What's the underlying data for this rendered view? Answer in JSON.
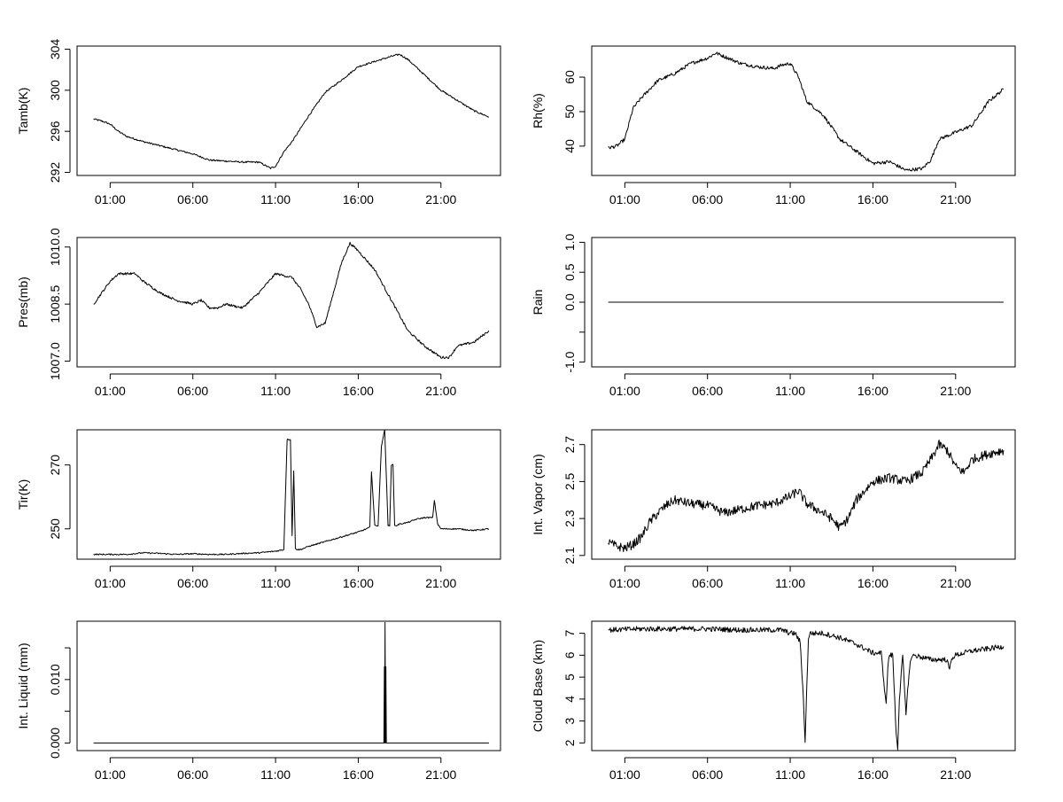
{
  "chart_data": [
    {
      "type": "line",
      "ylabel": "Tamb(K)",
      "xlabel": "",
      "xlim": [
        -1.0,
        24.6
      ],
      "ylim": [
        291.7,
        304.3
      ],
      "xticks": [
        1,
        6,
        11,
        16,
        21
      ],
      "xtick_labels": [
        "01:00",
        "06:00",
        "11:00",
        "16:00",
        "21:00"
      ],
      "yticks": [
        292,
        296,
        300,
        304
      ],
      "ytick_labels": [
        "292",
        "296",
        "300",
        "304"
      ],
      "noise": 0.08,
      "series": [
        {
          "x": [
            0.0,
            0.5,
            1.0,
            1.5,
            2.0,
            3.0,
            4.0,
            5.0,
            6.0,
            7.0,
            8.0,
            9.0,
            10.0,
            10.7,
            11.0,
            11.5,
            12.0,
            13.0,
            14.0,
            15.0,
            16.0,
            17.0,
            18.0,
            18.5,
            19.0,
            20.0,
            21.0,
            22.0,
            23.0,
            23.9
          ],
          "y": [
            297.2,
            297.0,
            296.7,
            296.0,
            295.5,
            295.0,
            294.6,
            294.2,
            293.8,
            293.2,
            293.1,
            293.0,
            293.0,
            292.4,
            292.6,
            294.0,
            295.0,
            297.5,
            299.8,
            301.0,
            302.3,
            302.8,
            303.3,
            303.5,
            303.0,
            301.5,
            300.0,
            299.0,
            298.0,
            297.4
          ]
        }
      ]
    },
    {
      "type": "line",
      "ylabel": "Rh(%)",
      "xlabel": "",
      "xlim": [
        -1.0,
        24.6
      ],
      "ylim": [
        31.5,
        69.0
      ],
      "xticks": [
        1,
        6,
        11,
        16,
        21
      ],
      "xtick_labels": [
        "01:00",
        "06:00",
        "11:00",
        "16:00",
        "21:00"
      ],
      "yticks": [
        40,
        50,
        60
      ],
      "ytick_labels": [
        "40",
        "50",
        "60"
      ],
      "noise": 0.5,
      "series": [
        {
          "x": [
            0.0,
            0.5,
            1.0,
            1.5,
            2.0,
            3.0,
            4.0,
            5.0,
            6.0,
            6.5,
            7.0,
            8.0,
            9.0,
            10.0,
            10.5,
            11.0,
            11.5,
            12.0,
            13.0,
            14.0,
            15.0,
            16.0,
            17.0,
            18.0,
            19.0,
            19.5,
            20.0,
            21.0,
            22.0,
            23.0,
            23.9
          ],
          "y": [
            39.5,
            40.0,
            42.0,
            51.0,
            54.0,
            59.0,
            61.0,
            64.0,
            65.5,
            67.0,
            66.0,
            64.0,
            63.0,
            62.5,
            63.5,
            64.0,
            60.0,
            53.0,
            49.0,
            42.0,
            38.5,
            35.0,
            35.5,
            33.0,
            33.5,
            36.0,
            42.0,
            44.0,
            46.0,
            53.0,
            56.5
          ]
        }
      ]
    },
    {
      "type": "line",
      "ylabel": "Pres(mb)",
      "xlabel": "",
      "xlim": [
        -1.0,
        24.6
      ],
      "ylim": [
        1006.85,
        1010.25
      ],
      "xticks": [
        1,
        6,
        11,
        16,
        21
      ],
      "xtick_labels": [
        "01:00",
        "06:00",
        "11:00",
        "16:00",
        "21:00"
      ],
      "yticks": [
        1007.0,
        1008.5,
        1010.0
      ],
      "ytick_labels": [
        "1007.0",
        "1008.5",
        "1010.0"
      ],
      "noise": 0.03,
      "series": [
        {
          "x": [
            0.0,
            0.5,
            1.0,
            1.5,
            2.0,
            2.5,
            3.0,
            4.0,
            5.0,
            6.0,
            6.5,
            7.0,
            7.5,
            8.0,
            9.0,
            10.0,
            11.0,
            12.0,
            12.5,
            13.0,
            13.5,
            14.0,
            14.5,
            15.0,
            15.5,
            16.0,
            17.0,
            18.0,
            19.0,
            20.0,
            21.0,
            21.5,
            22.0,
            23.0,
            23.9
          ],
          "y": [
            1008.5,
            1008.8,
            1009.1,
            1009.3,
            1009.3,
            1009.3,
            1009.1,
            1008.8,
            1008.6,
            1008.5,
            1008.6,
            1008.4,
            1008.4,
            1008.5,
            1008.4,
            1008.8,
            1009.3,
            1009.2,
            1008.9,
            1008.5,
            1007.9,
            1008.0,
            1008.8,
            1009.6,
            1010.1,
            1009.9,
            1009.4,
            1008.6,
            1007.8,
            1007.4,
            1007.1,
            1007.1,
            1007.4,
            1007.5,
            1007.8
          ]
        }
      ]
    },
    {
      "type": "line",
      "ylabel": "Rain",
      "xlabel": "",
      "xlim": [
        -1.0,
        24.6
      ],
      "ylim": [
        -1.08,
        1.08
      ],
      "xticks": [
        1,
        6,
        11,
        16,
        21
      ],
      "xtick_labels": [
        "01:00",
        "06:00",
        "11:00",
        "16:00",
        "21:00"
      ],
      "yticks": [
        -1.0,
        -0.5,
        0.0,
        0.5,
        1.0
      ],
      "ytick_labels": [
        "-1.0",
        "",
        "0.0",
        "0.5",
        "1.0"
      ],
      "noise": 0,
      "series": [
        {
          "x": [
            0.0,
            23.9
          ],
          "y": [
            0.0,
            0.0
          ]
        }
      ]
    },
    {
      "type": "line",
      "ylabel": "Tir(K)",
      "xlabel": "",
      "xlim": [
        -1.0,
        24.6
      ],
      "ylim": [
        240.5,
        281.0
      ],
      "xticks": [
        1,
        6,
        11,
        16,
        21
      ],
      "xtick_labels": [
        "01:00",
        "06:00",
        "11:00",
        "16:00",
        "21:00"
      ],
      "yticks": [
        250,
        270
      ],
      "ytick_labels": [
        "250",
        "270"
      ],
      "noise": 0.2,
      "series": [
        {
          "x": [
            0.0,
            1.0,
            2.0,
            3.0,
            4.0,
            5.0,
            6.0,
            7.0,
            8.0,
            9.0,
            10.0,
            11.0,
            11.5,
            11.7,
            11.9,
            12.0,
            12.1,
            12.2,
            12.3,
            12.5,
            13.0,
            14.0,
            15.0,
            16.0,
            16.5,
            16.7,
            16.8,
            17.0,
            17.2,
            17.4,
            17.6,
            17.8,
            17.9,
            18.0,
            18.1,
            18.2,
            18.3,
            18.5,
            19.0,
            19.5,
            20.0,
            20.5,
            20.6,
            20.8,
            21.0,
            22.0,
            23.0,
            23.9
          ],
          "y": [
            242.0,
            242.0,
            242.0,
            242.5,
            242.3,
            242.0,
            242.2,
            242.0,
            242.0,
            242.3,
            242.5,
            243.0,
            243.5,
            278.0,
            278.0,
            248.0,
            268.0,
            244.0,
            243.5,
            243.5,
            244.5,
            246.0,
            247.5,
            249.0,
            250.0,
            250.5,
            268.0,
            251.0,
            251.0,
            276.0,
            281.0,
            251.0,
            251.0,
            270.0,
            270.0,
            251.0,
            251.0,
            251.5,
            252.0,
            253.0,
            253.5,
            253.5,
            259.0,
            251.5,
            250.0,
            250.0,
            249.5,
            250.0
          ]
        }
      ]
    },
    {
      "type": "line",
      "ylabel": "Int. Vapor (cm)",
      "xlabel": "",
      "xlim": [
        -1.0,
        24.6
      ],
      "ylim": [
        2.08,
        2.78
      ],
      "xticks": [
        1,
        6,
        11,
        16,
        21
      ],
      "xtick_labels": [
        "01:00",
        "06:00",
        "11:00",
        "16:00",
        "21:00"
      ],
      "yticks": [
        2.1,
        2.3,
        2.5,
        2.7
      ],
      "ytick_labels": [
        "2.1",
        "2.3",
        "2.5",
        "2.7"
      ],
      "noise": 0.025,
      "series": [
        {
          "x": [
            0.0,
            0.5,
            1.0,
            1.5,
            2.0,
            2.5,
            3.0,
            3.5,
            4.0,
            5.0,
            6.0,
            7.0,
            8.0,
            9.0,
            10.0,
            11.0,
            11.5,
            12.0,
            13.0,
            13.5,
            14.0,
            14.5,
            15.0,
            15.5,
            16.0,
            17.0,
            18.0,
            19.0,
            19.5,
            20.0,
            20.5,
            21.0,
            21.5,
            22.0,
            23.0,
            23.9
          ],
          "y": [
            2.17,
            2.15,
            2.14,
            2.16,
            2.2,
            2.28,
            2.33,
            2.37,
            2.4,
            2.38,
            2.37,
            2.33,
            2.35,
            2.37,
            2.38,
            2.42,
            2.45,
            2.38,
            2.33,
            2.3,
            2.25,
            2.3,
            2.4,
            2.45,
            2.5,
            2.52,
            2.5,
            2.55,
            2.62,
            2.7,
            2.67,
            2.58,
            2.55,
            2.62,
            2.65,
            2.67
          ]
        }
      ]
    },
    {
      "type": "line",
      "ylabel": "Int. Liquid (mm)",
      "xlabel": "",
      "xlim": [
        -1.0,
        24.6
      ],
      "ylim": [
        -0.0012,
        0.0192
      ],
      "xticks": [
        1,
        6,
        11,
        16,
        21
      ],
      "xtick_labels": [
        "01:00",
        "06:00",
        "11:00",
        "16:00",
        "21:00"
      ],
      "yticks": [
        0.0,
        0.005,
        0.01,
        0.015
      ],
      "ytick_labels": [
        "0.000",
        "",
        "0.010",
        ""
      ],
      "noise": 0,
      "series": [
        {
          "x": [
            0.0,
            17.55,
            17.58,
            17.6,
            17.62,
            17.65,
            17.67,
            17.7,
            17.72,
            23.9
          ],
          "y": [
            0.0,
            0.0,
            0.012,
            0.0,
            0.019,
            0.0,
            0.012,
            0.0,
            0.0,
            0.0
          ]
        }
      ]
    },
    {
      "type": "line",
      "ylabel": "Cloud Base (km)",
      "xlabel": "",
      "xlim": [
        -1.0,
        24.6
      ],
      "ylim": [
        1.65,
        7.55
      ],
      "xticks": [
        1,
        6,
        11,
        16,
        21
      ],
      "xtick_labels": [
        "01:00",
        "06:00",
        "11:00",
        "16:00",
        "21:00"
      ],
      "yticks": [
        2,
        3,
        4,
        5,
        6,
        7
      ],
      "ytick_labels": [
        "2",
        "3",
        "4",
        "5",
        "6",
        "7"
      ],
      "noise": 0.12,
      "series": [
        {
          "x": [
            0.0,
            2.0,
            4.0,
            6.0,
            8.0,
            10.0,
            10.5,
            11.0,
            11.3,
            11.6,
            11.8,
            11.9,
            12.0,
            12.1,
            12.2,
            13.0,
            14.0,
            15.0,
            15.5,
            16.0,
            16.5,
            16.7,
            16.8,
            16.9,
            17.0,
            17.2,
            17.4,
            17.5,
            17.6,
            17.8,
            18.0,
            18.1,
            18.3,
            18.5,
            19.0,
            19.5,
            20.0,
            20.5,
            20.6,
            20.8,
            21.0,
            22.0,
            23.0,
            23.9
          ],
          "y": [
            7.15,
            7.2,
            7.2,
            7.2,
            7.15,
            7.15,
            7.15,
            7.0,
            7.0,
            6.6,
            4.0,
            2.0,
            4.5,
            6.8,
            7.0,
            7.0,
            6.8,
            6.5,
            6.3,
            6.1,
            6.1,
            4.5,
            3.7,
            5.5,
            6.0,
            6.0,
            2.5,
            1.8,
            4.0,
            6.0,
            3.2,
            4.5,
            5.9,
            6.0,
            5.9,
            5.8,
            5.8,
            5.8,
            5.3,
            5.9,
            6.0,
            6.2,
            6.3,
            6.4
          ]
        }
      ]
    }
  ]
}
